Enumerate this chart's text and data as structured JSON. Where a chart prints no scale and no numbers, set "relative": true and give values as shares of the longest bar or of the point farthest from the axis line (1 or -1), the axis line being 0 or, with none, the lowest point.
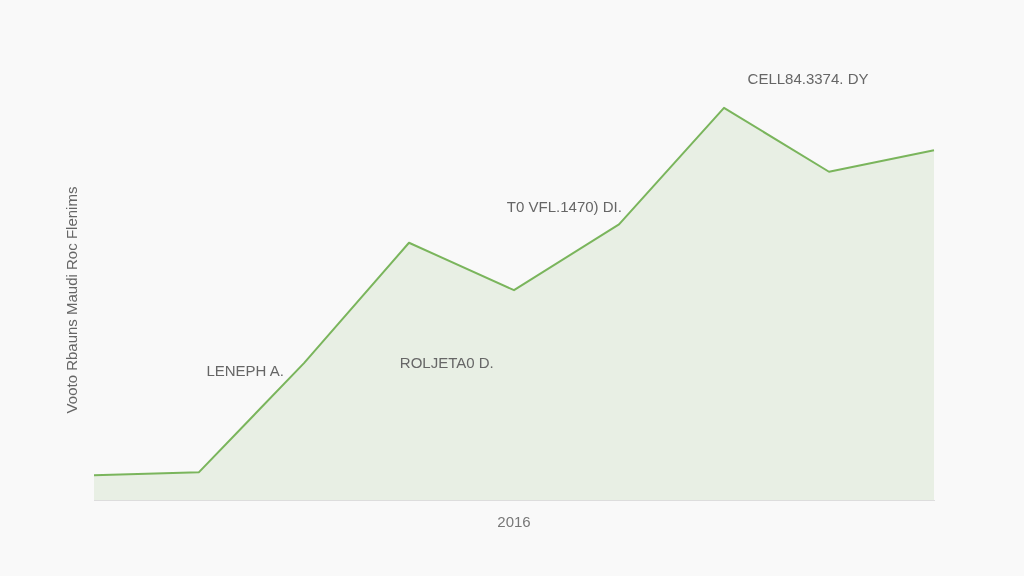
{
  "chart_data": {
    "type": "area",
    "ylabel": "Vooto Rbauns Maudi Roc Flenims",
    "xlabel": "2016",
    "categories": [
      null,
      null,
      null,
      null,
      null,
      null,
      null,
      null,
      null
    ],
    "relative": true,
    "series": [
      {
        "color": "#7ab55c",
        "values": [
          0.063,
          0.071,
          0.349,
          0.656,
          0.535,
          0.703,
          1,
          0.837,
          0.892
        ]
      }
    ],
    "annotations": [
      "LENEPH A.",
      "ROLJETA0 D.",
      "T0 VFL.1470) DI.",
      "CELL84.3374. DY"
    ],
    "legend": false,
    "marker": "none",
    "line_style": "solid"
  }
}
